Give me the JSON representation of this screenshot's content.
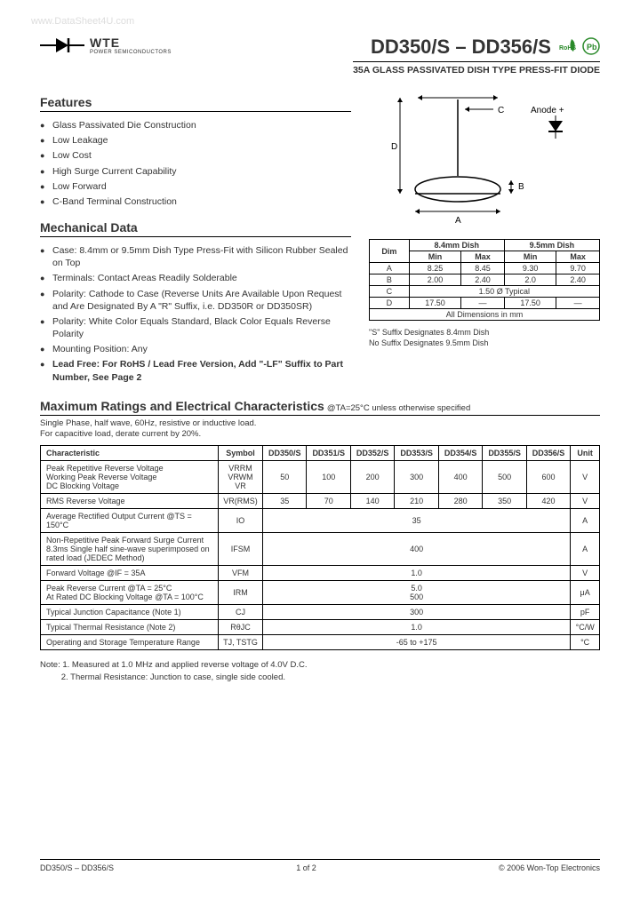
{
  "watermark": "www.DataSheet4U.com",
  "logo": {
    "brand": "WTE",
    "tagline": "POWER SEMICONDUCTORS"
  },
  "title": "DD350/S – DD356/S",
  "subtitle": "35A GLASS PASSIVATED DISH TYPE PRESS-FIT DIODE",
  "features": {
    "heading": "Features",
    "items": [
      "Glass Passivated Die Construction",
      "Low Leakage",
      "Low Cost",
      "High Surge Current Capability",
      "Low Forward",
      "C-Band Terminal Construction"
    ]
  },
  "mechanical": {
    "heading": "Mechanical Data",
    "items": [
      "Case: 8.4mm or 9.5mm Dish Type Press-Fit with Silicon Rubber Sealed on Top",
      "Terminals: Contact Areas Readily Solderable",
      "Polarity: Cathode to Case (Reverse Units Are Available Upon Request and Are Designated By A \"R\" Suffix, i.e. DD350R or DD350SR)",
      "Polarity: White Color Equals Standard, Black Color Equals Reverse Polarity",
      "Mounting Position: Any",
      "Lead Free: For RoHS / Lead Free Version, Add \"-LF\" Suffix to Part Number, See Page 2"
    ]
  },
  "diagram": {
    "anode_label": "Anode +"
  },
  "dim_table": {
    "h1": "8.4mm Dish",
    "h2": "9.5mm Dish",
    "cols": [
      "Dim",
      "Min",
      "Max",
      "Min",
      "Max"
    ],
    "rows": [
      [
        "A",
        "8.25",
        "8.45",
        "9.30",
        "9.70"
      ],
      [
        "B",
        "2.00",
        "2.40",
        "2.0",
        "2.40"
      ]
    ],
    "c_row": [
      "C",
      "1.50 Ø Typical"
    ],
    "d_row": [
      "D",
      "17.50",
      "—",
      "17.50",
      "—"
    ],
    "footer": "All Dimensions in mm"
  },
  "dim_note1": "\"S\" Suffix Designates 8.4mm Dish",
  "dim_note2": "No Suffix Designates 9.5mm Dish",
  "ratings": {
    "heading": "Maximum Ratings and Electrical Characteristics",
    "condition": "@TA=25°C unless otherwise specified",
    "sub1": "Single Phase, half wave, 60Hz, resistive or inductive load.",
    "sub2": "For capacitive load, derate current by 20%.",
    "cols": [
      "Characteristic",
      "Symbol",
      "DD350/S",
      "DD351/S",
      "DD352/S",
      "DD353/S",
      "DD354/S",
      "DD355/S",
      "DD356/S",
      "Unit"
    ],
    "rows": [
      {
        "char": "Peak Repetitive Reverse Voltage\nWorking Peak Reverse Voltage\nDC Blocking Voltage",
        "sym": "VRRM\nVRWM\nVR",
        "vals": [
          "50",
          "100",
          "200",
          "300",
          "400",
          "500",
          "600"
        ],
        "unit": "V"
      },
      {
        "char": "RMS Reverse Voltage",
        "sym": "VR(RMS)",
        "vals": [
          "35",
          "70",
          "140",
          "210",
          "280",
          "350",
          "420"
        ],
        "unit": "V"
      },
      {
        "char": "Average Rectified Output Current   @TS = 150°C",
        "sym": "IO",
        "span": "35",
        "unit": "A"
      },
      {
        "char": "Non-Repetitive Peak Forward Surge Current\n8.3ms Single half sine-wave superimposed on rated load (JEDEC Method)",
        "sym": "IFSM",
        "span": "400",
        "unit": "A"
      },
      {
        "char": "Forward Voltage                    @IF = 35A",
        "sym": "VFM",
        "span": "1.0",
        "unit": "V"
      },
      {
        "char": "Peak Reverse Current          @TA = 25°C\nAt Rated DC Blocking Voltage   @TA = 100°C",
        "sym": "IRM",
        "span": "5.0\n500",
        "unit": "μA"
      },
      {
        "char": "Typical Junction Capacitance (Note 1)",
        "sym": "CJ",
        "span": "300",
        "unit": "pF"
      },
      {
        "char": "Typical Thermal Resistance (Note 2)",
        "sym": "RθJC",
        "span": "1.0",
        "unit": "°C/W"
      },
      {
        "char": "Operating and Storage Temperature Range",
        "sym": "TJ, TSTG",
        "span": "-65 to +175",
        "unit": "°C"
      }
    ]
  },
  "notes": {
    "label": "Note:",
    "n1": "1. Measured at 1.0 MHz and applied reverse voltage of 4.0V D.C.",
    "n2": "2. Thermal Resistance: Junction to case, single side cooled."
  },
  "footer": {
    "left": "DD350/S – DD356/S",
    "center": "1 of 2",
    "right": "© 2006 Won-Top Electronics"
  }
}
